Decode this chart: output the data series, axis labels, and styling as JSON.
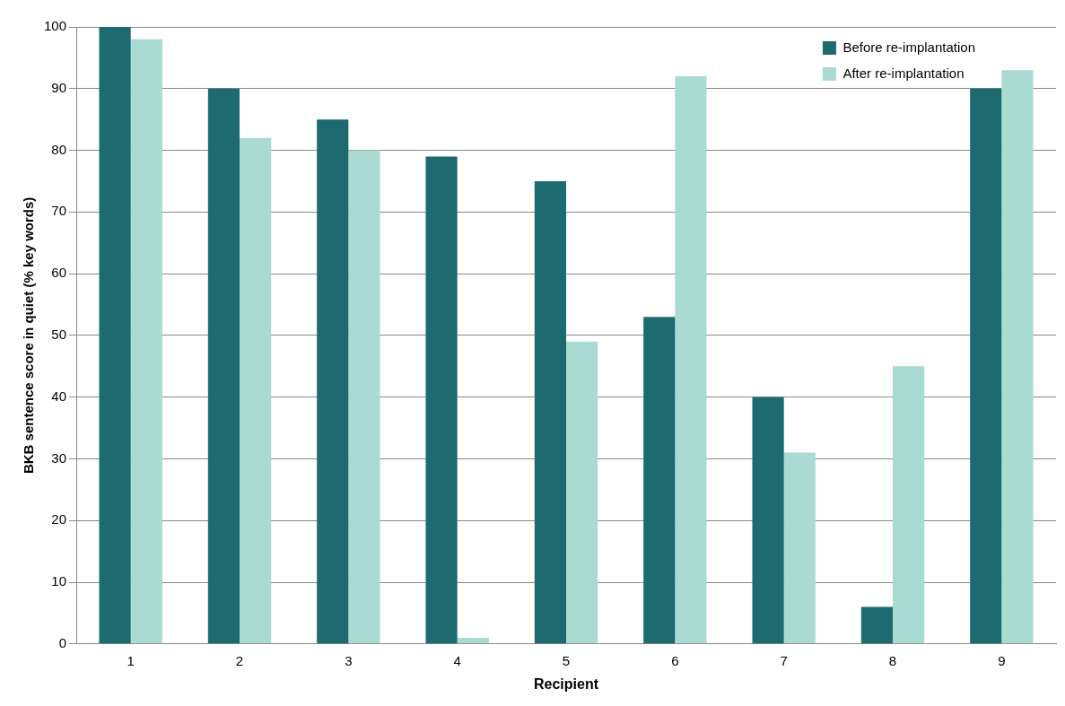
{
  "chart_data": {
    "type": "bar",
    "xlabel": "Recipient",
    "ylabel": "BKB sentence score in quiet (% key words)",
    "categories": [
      "1",
      "2",
      "3",
      "4",
      "5",
      "6",
      "7",
      "8",
      "9"
    ],
    "series": [
      {
        "name": "Before re-implantation",
        "color": "#1d6b70",
        "values": [
          100,
          90,
          85,
          79,
          75,
          53,
          40,
          6,
          90
        ]
      },
      {
        "name": "After re-implantation",
        "color": "#a9dbd3",
        "values": [
          98,
          82,
          80,
          1,
          49,
          92,
          31,
          45,
          93
        ]
      }
    ],
    "ylim": [
      0,
      100
    ],
    "yticks": [
      0,
      10,
      20,
      30,
      40,
      50,
      60,
      70,
      80,
      90,
      100
    ],
    "grid": "y",
    "legend": "top right"
  }
}
